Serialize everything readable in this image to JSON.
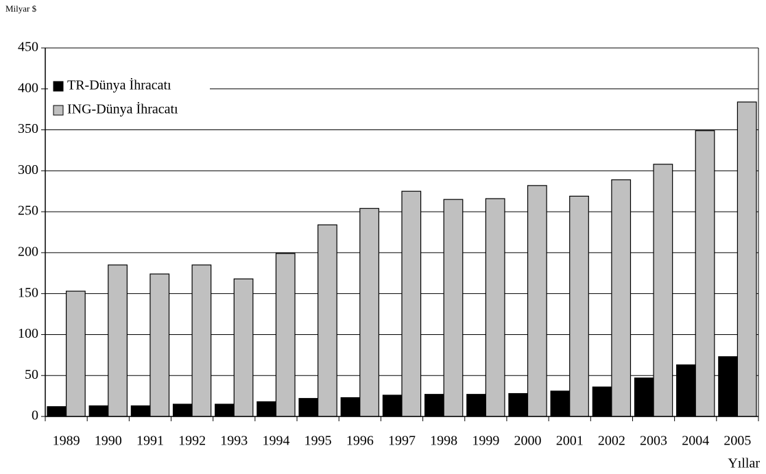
{
  "chart_data": {
    "type": "bar",
    "y_unit_label": "Milyar $",
    "x_axis_label": "Yıllar",
    "categories": [
      "1989",
      "1990",
      "1991",
      "1992",
      "1993",
      "1994",
      "1995",
      "1996",
      "1997",
      "1998",
      "1999",
      "2000",
      "2001",
      "2002",
      "2003",
      "2004",
      "2005"
    ],
    "series": [
      {
        "name": "TR-Dünya İhracatı",
        "color": "#000000",
        "values": [
          12,
          13,
          13,
          15,
          15,
          18,
          22,
          23,
          26,
          27,
          27,
          28,
          31,
          36,
          47,
          63,
          73
        ]
      },
      {
        "name": "ING-Dünya İhracatı",
        "color": "#c0c0c0",
        "values": [
          153,
          185,
          174,
          185,
          168,
          199,
          234,
          254,
          275,
          265,
          266,
          282,
          269,
          289,
          308,
          349,
          384
        ]
      }
    ],
    "ylim": [
      0,
      450
    ],
    "yticks": [
      0,
      50,
      100,
      150,
      200,
      250,
      300,
      350,
      400,
      450
    ],
    "grid": true,
    "legend": "upper left"
  }
}
